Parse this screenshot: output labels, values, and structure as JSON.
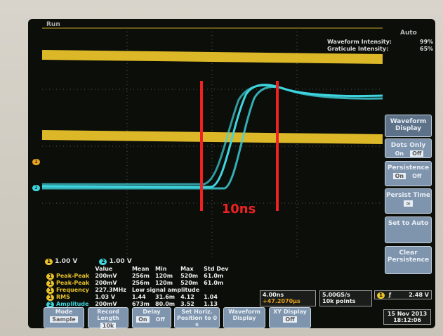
{
  "top_bar": {
    "run": "Run",
    "trigger_mode": "Auto"
  },
  "intensity": {
    "waveform_label": "Waveform Intensity:",
    "waveform_value": "99%",
    "graticule_label": "Graticule Intensity:",
    "graticule_value": "65%"
  },
  "annotation": "10ns",
  "channel_markers": [
    "1",
    "2"
  ],
  "side_menu": {
    "title": "Waveform Display",
    "items": [
      {
        "label": "Dots Only",
        "options": [
          "On",
          "Off"
        ]
      },
      {
        "label": "Persistence",
        "options": [
          "On",
          "Off"
        ]
      },
      {
        "label": "Persist Time",
        "value": "∞"
      },
      {
        "label": "Set to Auto"
      },
      {
        "label": "Clear Persistence"
      }
    ]
  },
  "channels": [
    {
      "id": "1",
      "scale": "1.00 V"
    },
    {
      "id": "2",
      "scale": "1.00 V"
    }
  ],
  "measurements": {
    "headers": [
      "Value",
      "Mean",
      "Min",
      "Max",
      "Std Dev"
    ],
    "rows": [
      {
        "channel": "1",
        "name": "Peak-Peak",
        "cells": [
          "200mV",
          "256m",
          "120m",
          "520m",
          "61.0m"
        ]
      },
      {
        "channel": "1",
        "name": "Peak-Peak",
        "cells": [
          "200mV",
          "256m",
          "120m",
          "520m",
          "61.0m"
        ]
      },
      {
        "channel": "1",
        "name": "Frequency",
        "cells": [
          "227.3MHz",
          "Low signal amplitude"
        ]
      },
      {
        "channel": "1",
        "name": "RMS",
        "cells": [
          "1.03 V",
          "1.44",
          "31.6m",
          "4.12",
          "1.04"
        ]
      },
      {
        "channel": "2",
        "name": "Amplitude",
        "cells": [
          "200mV",
          "673m",
          "80.0m",
          "3.52",
          "1.13"
        ]
      }
    ]
  },
  "horizontal": {
    "scale": "4.00ns",
    "position": "+47.2070µs",
    "sample_rate": "5.00GS/s",
    "record": "10k points"
  },
  "trigger": {
    "channel": "1",
    "level": "2.48 V"
  },
  "bottom_menu": [
    {
      "label": "Mode",
      "value": "Sample"
    },
    {
      "label": "Record Length",
      "value": "10k"
    },
    {
      "label": "Delay",
      "options": [
        "On",
        "Off"
      ]
    },
    {
      "label": "Set Horiz. Position to 0 s"
    },
    {
      "label": "Waveform Display"
    },
    {
      "label": "XY Display",
      "value": "Off"
    }
  ],
  "datetime": {
    "date": "15 Nov 2013",
    "time": "18:12:06"
  }
}
